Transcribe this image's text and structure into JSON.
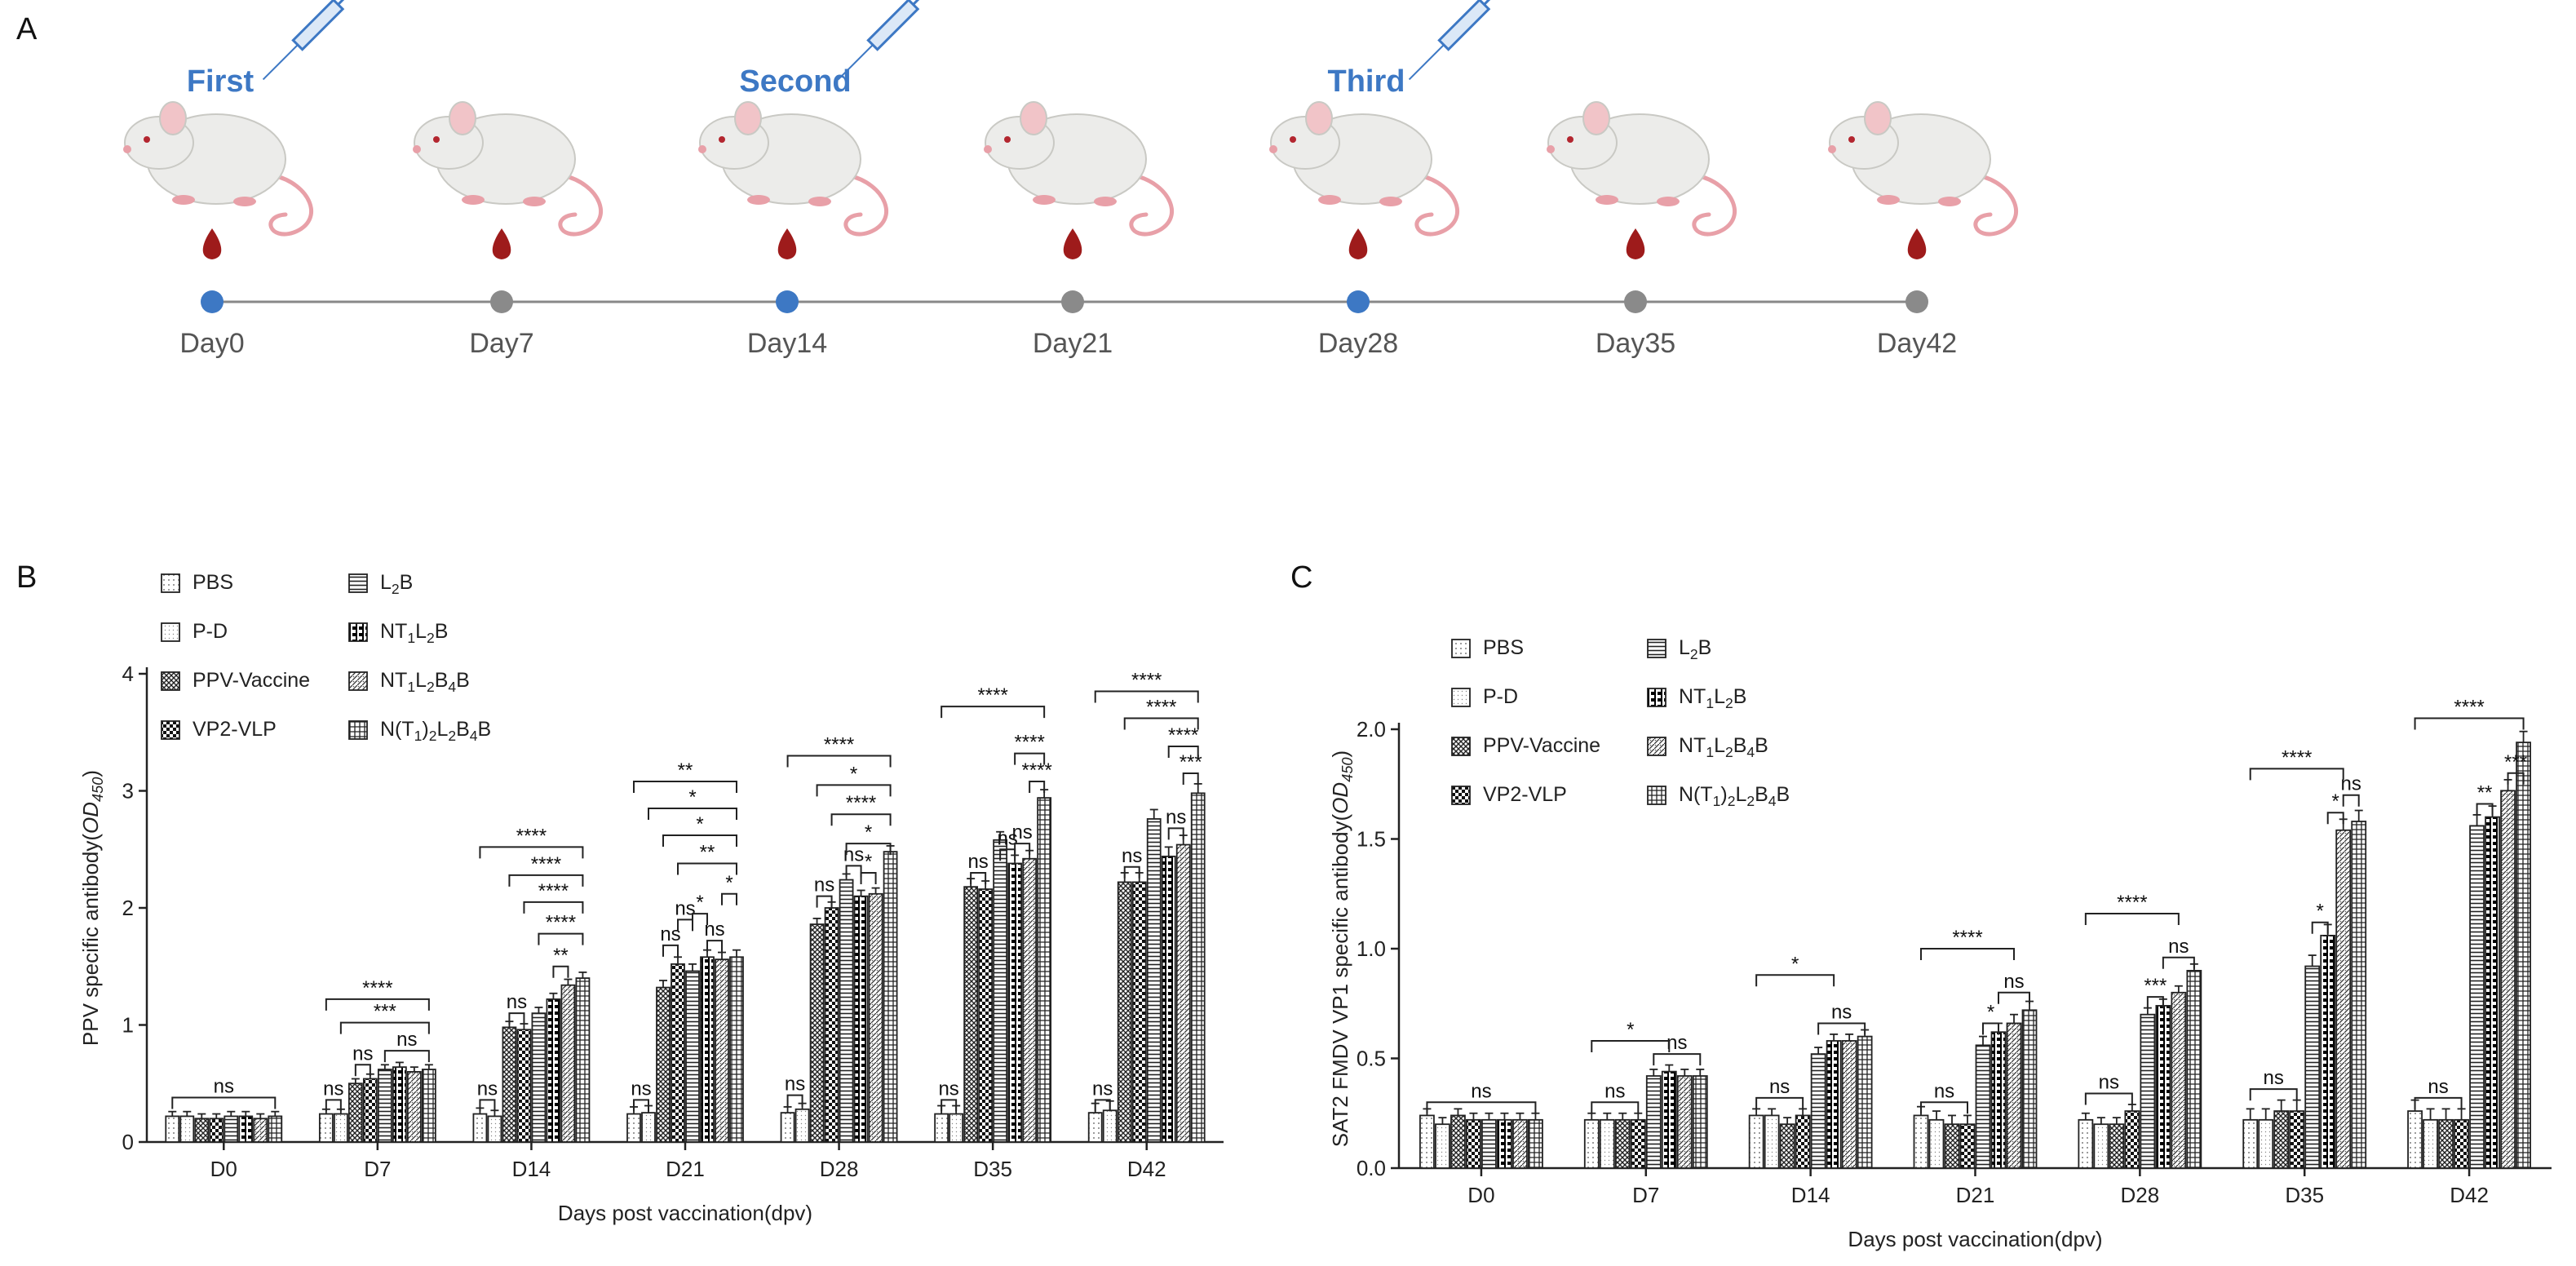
{
  "panel_a": {
    "letter": "A",
    "doses": [
      "First",
      "Second",
      "Third"
    ],
    "dose_day_index": [
      0,
      2,
      4
    ],
    "days": [
      "Day0",
      "Day7",
      "Day14",
      "Day21",
      "Day28",
      "Day35",
      "Day42"
    ],
    "colors": {
      "dose_dot": "#3d78c4",
      "plain_dot": "#8a8a8a",
      "blood": "#9e1b1b",
      "mouse_body": "#ececea",
      "mouse_tail": "#e8a0a8"
    }
  },
  "chart_data": [
    {
      "panel": "B",
      "type": "bar",
      "ylabel": "PPV specific antibody(OD450)",
      "ylabel_parts": [
        "PPV specific antibody(",
        "OD",
        "450",
        ")"
      ],
      "xlabel": "Days post vaccination(dpv)",
      "ylim": [
        0,
        4
      ],
      "yticks": [
        "0",
        "1",
        "2",
        "3",
        "4"
      ],
      "categories": [
        "D0",
        "D7",
        "D14",
        "D21",
        "D28",
        "D35",
        "D42"
      ],
      "legend": [
        {
          "parts": [
            "PBS"
          ]
        },
        {
          "parts": [
            "P-D"
          ]
        },
        {
          "parts": [
            "PPV-Vaccine"
          ]
        },
        {
          "parts": [
            "VP2-VLP"
          ]
        },
        {
          "parts": [
            "L",
            "2",
            "B"
          ]
        },
        {
          "parts": [
            "NT",
            "1",
            "L",
            "2",
            "B"
          ]
        },
        {
          "parts": [
            "NT",
            "1",
            "L",
            "2",
            "B",
            "4",
            "B"
          ]
        },
        {
          "parts": [
            "N(T",
            "1",
            ")",
            "2",
            "L",
            "2",
            "B",
            "4",
            "B"
          ]
        }
      ],
      "series": [
        {
          "name": "PBS",
          "values": [
            0.22,
            0.24,
            0.24,
            0.24,
            0.25,
            0.24,
            0.25
          ]
        },
        {
          "name": "P-D",
          "values": [
            0.22,
            0.24,
            0.22,
            0.25,
            0.28,
            0.24,
            0.27
          ]
        },
        {
          "name": "PPV-Vaccine",
          "values": [
            0.2,
            0.5,
            0.98,
            1.32,
            1.86,
            2.18,
            2.22
          ]
        },
        {
          "name": "VP2-VLP",
          "values": [
            0.2,
            0.54,
            0.96,
            1.52,
            2.0,
            2.16,
            2.22
          ]
        },
        {
          "name": "L2B",
          "values": [
            0.22,
            0.62,
            1.1,
            1.46,
            2.24,
            2.58,
            2.76
          ]
        },
        {
          "name": "NT1L2B",
          "values": [
            0.22,
            0.64,
            1.22,
            1.58,
            2.1,
            2.38,
            2.44
          ]
        },
        {
          "name": "NT1L2B4B",
          "values": [
            0.2,
            0.6,
            1.34,
            1.56,
            2.12,
            2.42,
            2.54
          ]
        },
        {
          "name": "N(T1)2L2B4B",
          "values": [
            0.22,
            0.62,
            1.4,
            1.58,
            2.48,
            2.94,
            2.98
          ]
        }
      ],
      "errors": [
        0.04,
        0.04,
        0.05,
        0.06,
        0.05,
        0.07,
        0.08
      ],
      "annotations": [
        {
          "cat": 0,
          "from": 0,
          "to": 7,
          "level": 0.38,
          "text": "ns"
        },
        {
          "cat": 1,
          "from": 0,
          "to": 1,
          "level": 0.36,
          "text": "ns"
        },
        {
          "cat": 1,
          "from": 2,
          "to": 3,
          "level": 0.66,
          "text": "ns"
        },
        {
          "cat": 1,
          "from": 4,
          "to": 7,
          "level": 0.78,
          "text": "ns"
        },
        {
          "cat": 1,
          "from": 1,
          "to": 7,
          "level": 1.02,
          "text": "***"
        },
        {
          "cat": 1,
          "from": 0,
          "to": 7,
          "level": 1.22,
          "text": "****"
        },
        {
          "cat": 2,
          "from": 0,
          "to": 1,
          "level": 0.36,
          "text": "ns"
        },
        {
          "cat": 2,
          "from": 2,
          "to": 3,
          "level": 1.1,
          "text": "ns"
        },
        {
          "cat": 2,
          "from": 5,
          "to": 6,
          "level": 1.5,
          "text": "**"
        },
        {
          "cat": 2,
          "from": 4,
          "to": 7,
          "level": 1.78,
          "text": "****"
        },
        {
          "cat": 2,
          "from": 3,
          "to": 7,
          "level": 2.05,
          "text": "****"
        },
        {
          "cat": 2,
          "from": 2,
          "to": 7,
          "level": 2.28,
          "text": "****"
        },
        {
          "cat": 2,
          "from": 0,
          "to": 7,
          "level": 2.52,
          "text": "****"
        },
        {
          "cat": 3,
          "from": 0,
          "to": 1,
          "level": 0.36,
          "text": "ns"
        },
        {
          "cat": 3,
          "from": 2,
          "to": 3,
          "level": 1.68,
          "text": "ns"
        },
        {
          "cat": 3,
          "from": 3,
          "to": 4,
          "level": 1.9,
          "text": "ns"
        },
        {
          "cat": 3,
          "from": 5,
          "to": 6,
          "level": 1.72,
          "text": "ns"
        },
        {
          "cat": 3,
          "from": 4,
          "to": 5,
          "level": 1.95,
          "text": "*"
        },
        {
          "cat": 3,
          "from": 6,
          "to": 7,
          "level": 2.12,
          "text": "*"
        },
        {
          "cat": 3,
          "from": 3,
          "to": 7,
          "level": 2.38,
          "text": "**"
        },
        {
          "cat": 3,
          "from": 2,
          "to": 7,
          "level": 2.62,
          "text": "*"
        },
        {
          "cat": 3,
          "from": 1,
          "to": 7,
          "level": 2.85,
          "text": "*"
        },
        {
          "cat": 3,
          "from": 0,
          "to": 7,
          "level": 3.08,
          "text": "**"
        },
        {
          "cat": 4,
          "from": 0,
          "to": 1,
          "level": 0.4,
          "text": "ns"
        },
        {
          "cat": 4,
          "from": 2,
          "to": 3,
          "level": 2.1,
          "text": "ns"
        },
        {
          "cat": 4,
          "from": 4,
          "to": 5,
          "level": 2.36,
          "text": "ns"
        },
        {
          "cat": 4,
          "from": 5,
          "to": 6,
          "level": 2.3,
          "text": "*"
        },
        {
          "cat": 4,
          "from": 4,
          "to": 7,
          "level": 2.55,
          "text": "*"
        },
        {
          "cat": 4,
          "from": 3,
          "to": 7,
          "level": 2.8,
          "text": "****"
        },
        {
          "cat": 4,
          "from": 2,
          "to": 7,
          "level": 3.05,
          "text": "*"
        },
        {
          "cat": 4,
          "from": 0,
          "to": 7,
          "level": 3.3,
          "text": "****"
        },
        {
          "cat": 5,
          "from": 0,
          "to": 1,
          "level": 0.36,
          "text": "ns"
        },
        {
          "cat": 5,
          "from": 2,
          "to": 3,
          "level": 2.3,
          "text": "ns"
        },
        {
          "cat": 5,
          "from": 4,
          "to": 5,
          "level": 2.5,
          "text": "ns"
        },
        {
          "cat": 5,
          "from": 5,
          "to": 6,
          "level": 2.55,
          "text": "ns"
        },
        {
          "cat": 5,
          "from": 6,
          "to": 7,
          "level": 3.08,
          "text": "****"
        },
        {
          "cat": 5,
          "from": 5,
          "to": 7,
          "level": 3.32,
          "text": "****"
        },
        {
          "cat": 5,
          "from": 0,
          "to": 7,
          "level": 3.72,
          "text": "****"
        },
        {
          "cat": 6,
          "from": 0,
          "to": 1,
          "level": 0.36,
          "text": "ns"
        },
        {
          "cat": 6,
          "from": 2,
          "to": 3,
          "level": 2.35,
          "text": "ns"
        },
        {
          "cat": 6,
          "from": 5,
          "to": 6,
          "level": 2.68,
          "text": "ns"
        },
        {
          "cat": 6,
          "from": 6,
          "to": 7,
          "level": 3.15,
          "text": "***"
        },
        {
          "cat": 6,
          "from": 5,
          "to": 7,
          "level": 3.38,
          "text": "****"
        },
        {
          "cat": 6,
          "from": 2,
          "to": 7,
          "level": 3.62,
          "text": "****"
        },
        {
          "cat": 6,
          "from": 0,
          "to": 7,
          "level": 3.85,
          "text": "****"
        }
      ]
    },
    {
      "panel": "C",
      "type": "bar",
      "ylabel": "SAT2 FMDV VP1 specific antibody(OD450)",
      "ylabel_parts": [
        "SAT2 FMDV VP1 specific antibody(",
        "OD",
        "450",
        ")"
      ],
      "xlabel": "Days post vaccination(dpv)",
      "ylim": [
        0,
        2.0
      ],
      "yticks": [
        "0.0",
        "0.5",
        "1.0",
        "1.5",
        "2.0"
      ],
      "categories": [
        "D0",
        "D7",
        "D14",
        "D21",
        "D28",
        "D35",
        "D42"
      ],
      "legend": [
        {
          "parts": [
            "PBS"
          ]
        },
        {
          "parts": [
            "P-D"
          ]
        },
        {
          "parts": [
            "PPV-Vaccine"
          ]
        },
        {
          "parts": [
            "VP2-VLP"
          ]
        },
        {
          "parts": [
            "L",
            "2",
            "B"
          ]
        },
        {
          "parts": [
            "NT",
            "1",
            "L",
            "2",
            "B"
          ]
        },
        {
          "parts": [
            "NT",
            "1",
            "L",
            "2",
            "B",
            "4",
            "B"
          ]
        },
        {
          "parts": [
            "N(T",
            "1",
            ")",
            "2",
            "L",
            "2",
            "B",
            "4",
            "B"
          ]
        }
      ],
      "series": [
        {
          "name": "PBS",
          "values": [
            0.24,
            0.22,
            0.24,
            0.24,
            0.22,
            0.22,
            0.26
          ]
        },
        {
          "name": "P-D",
          "values": [
            0.2,
            0.22,
            0.24,
            0.22,
            0.2,
            0.22,
            0.22
          ]
        },
        {
          "name": "PPV-Vaccine",
          "values": [
            0.24,
            0.22,
            0.2,
            0.2,
            0.2,
            0.26,
            0.22
          ]
        },
        {
          "name": "VP2-VLP",
          "values": [
            0.22,
            0.22,
            0.24,
            0.2,
            0.26,
            0.26,
            0.22
          ]
        },
        {
          "name": "L2B",
          "values": [
            0.22,
            0.42,
            0.52,
            0.56,
            0.7,
            0.92,
            1.56
          ]
        },
        {
          "name": "NT1L2B",
          "values": [
            0.22,
            0.44,
            0.58,
            0.62,
            0.74,
            1.06,
            1.6
          ]
        },
        {
          "name": "NT1L2B4B",
          "values": [
            0.22,
            0.42,
            0.58,
            0.66,
            0.8,
            1.54,
            1.72
          ]
        },
        {
          "name": "N(T1)2L2B4B",
          "values": [
            0.22,
            0.42,
            0.6,
            0.72,
            0.9,
            1.58,
            1.94
          ]
        }
      ],
      "errors": [
        0.03,
        0.03,
        0.03,
        0.04,
        0.03,
        0.05,
        0.05
      ],
      "annotations": [
        {
          "cat": 0,
          "from": 0,
          "to": 7,
          "level": 0.3,
          "text": "ns"
        },
        {
          "cat": 1,
          "from": 0,
          "to": 3,
          "level": 0.3,
          "text": "ns"
        },
        {
          "cat": 1,
          "from": 4,
          "to": 7,
          "level": 0.52,
          "text": "ns"
        },
        {
          "cat": 1,
          "from": 0,
          "to": 5,
          "level": 0.58,
          "text": "*"
        },
        {
          "cat": 2,
          "from": 0,
          "to": 3,
          "level": 0.32,
          "text": "ns"
        },
        {
          "cat": 2,
          "from": 4,
          "to": 7,
          "level": 0.66,
          "text": "ns"
        },
        {
          "cat": 2,
          "from": 0,
          "to": 5,
          "level": 0.88,
          "text": "*"
        },
        {
          "cat": 3,
          "from": 0,
          "to": 3,
          "level": 0.3,
          "text": "ns"
        },
        {
          "cat": 3,
          "from": 4,
          "to": 5,
          "level": 0.66,
          "text": "*"
        },
        {
          "cat": 3,
          "from": 5,
          "to": 7,
          "level": 0.8,
          "text": "ns"
        },
        {
          "cat": 3,
          "from": 0,
          "to": 6,
          "level": 1.0,
          "text": "****"
        },
        {
          "cat": 4,
          "from": 0,
          "to": 3,
          "level": 0.34,
          "text": "ns"
        },
        {
          "cat": 4,
          "from": 4,
          "to": 5,
          "level": 0.78,
          "text": "***"
        },
        {
          "cat": 4,
          "from": 5,
          "to": 7,
          "level": 0.96,
          "text": "ns"
        },
        {
          "cat": 4,
          "from": 0,
          "to": 6,
          "level": 1.16,
          "text": "****"
        },
        {
          "cat": 5,
          "from": 0,
          "to": 3,
          "level": 0.36,
          "text": "ns"
        },
        {
          "cat": 5,
          "from": 4,
          "to": 5,
          "level": 1.12,
          "text": "*"
        },
        {
          "cat": 5,
          "from": 5,
          "to": 6,
          "level": 1.62,
          "text": "*"
        },
        {
          "cat": 5,
          "from": 6,
          "to": 7,
          "level": 1.7,
          "text": "ns"
        },
        {
          "cat": 5,
          "from": 0,
          "to": 6,
          "level": 1.82,
          "text": "****"
        },
        {
          "cat": 6,
          "from": 0,
          "to": 3,
          "level": 0.32,
          "text": "ns"
        },
        {
          "cat": 6,
          "from": 4,
          "to": 5,
          "level": 1.66,
          "text": "**"
        },
        {
          "cat": 6,
          "from": 6,
          "to": 7,
          "level": 1.8,
          "text": "***"
        },
        {
          "cat": 6,
          "from": 0,
          "to": 7,
          "level": 2.05,
          "text": "****"
        }
      ]
    }
  ]
}
